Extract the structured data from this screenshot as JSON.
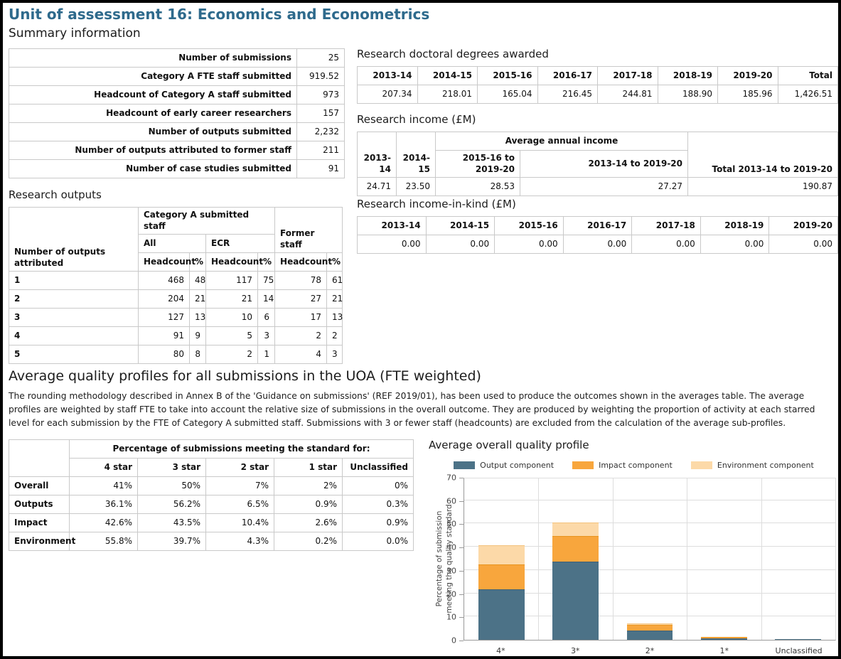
{
  "page": {
    "title": "Unit of assessment 16: Economics and Econometrics"
  },
  "colors": {
    "accent_heading": "#2e6a8c",
    "output_component": "#4c7287",
    "impact_component": "#f8a63d",
    "environment_component": "#fcd9a8"
  },
  "summary": {
    "heading": "Summary information",
    "rows": [
      {
        "label": "Number of submissions",
        "value": "25"
      },
      {
        "label": "Category A FTE staff submitted",
        "value": "919.52"
      },
      {
        "label": "Headcount of Category A staff submitted",
        "value": "973"
      },
      {
        "label": "Headcount of early career researchers",
        "value": "157"
      },
      {
        "label": "Number of outputs submitted",
        "value": "2,232"
      },
      {
        "label": "Number of outputs attributed to former staff",
        "value": "211"
      },
      {
        "label": "Number of case studies submitted",
        "value": "91"
      }
    ]
  },
  "doctoral_degrees": {
    "heading": "Research doctoral degrees awarded",
    "columns": [
      "2013-14",
      "2014-15",
      "2015-16",
      "2016-17",
      "2017-18",
      "2018-19",
      "2019-20",
      "Total"
    ],
    "values": [
      "207.34",
      "218.01",
      "165.04",
      "216.45",
      "244.81",
      "188.90",
      "185.96",
      "1,426.51"
    ]
  },
  "research_income": {
    "heading": "Research income (£M)",
    "group_header": "Average annual income",
    "columns": [
      "2013-14",
      "2014-15",
      "2015-16 to 2019-20",
      "2013-14 to 2019-20",
      "Total 2013-14 to 2019-20"
    ],
    "values": [
      "24.71",
      "23.50",
      "28.53",
      "27.27",
      "190.87"
    ]
  },
  "income_in_kind": {
    "heading": "Research income-in-kind (£M)",
    "columns": [
      "2013-14",
      "2014-15",
      "2015-16",
      "2016-17",
      "2017-18",
      "2018-19",
      "2019-20"
    ],
    "values": [
      "0.00",
      "0.00",
      "0.00",
      "0.00",
      "0.00",
      "0.00",
      "0.00"
    ]
  },
  "research_outputs": {
    "heading": "Research outputs",
    "row_header": "Number of outputs attributed",
    "group1": "Category A submitted staff",
    "subgroups": [
      "All",
      "ECR",
      "Former staff"
    ],
    "measure_headers": [
      "Headcount",
      "%"
    ],
    "rows": [
      {
        "label": "1",
        "values": [
          "468",
          "48",
          "117",
          "75",
          "78",
          "61"
        ]
      },
      {
        "label": "2",
        "values": [
          "204",
          "21",
          "21",
          "14",
          "27",
          "21"
        ]
      },
      {
        "label": "3",
        "values": [
          "127",
          "13",
          "10",
          "6",
          "17",
          "13"
        ]
      },
      {
        "label": "4",
        "values": [
          "91",
          "9",
          "5",
          "3",
          "2",
          "2"
        ]
      },
      {
        "label": "5",
        "values": [
          "80",
          "8",
          "2",
          "1",
          "4",
          "3"
        ]
      }
    ]
  },
  "quality_profiles": {
    "heading": "Average quality profiles for all submissions in the UOA (FTE weighted)",
    "description": "The rounding methodology described in Annex B of the 'Guidance on submissions' (REF 2019/01), has been used to produce the outcomes shown in the averages table. The average profiles are weighted by staff FTE to take into account the relative size of submissions in the overall outcome. They are produced by weighting the proportion of activity at each starred level for each submission by the FTE of Category A submitted staff. Submissions with 3 or fewer staff (headcounts) are excluded from the calculation of the average sub-profiles.",
    "table": {
      "group_header": "Percentage of submissions meeting the standard for:",
      "columns": [
        "4 star",
        "3 star",
        "2 star",
        "1 star",
        "Unclassified"
      ],
      "rows": [
        {
          "label": "Overall",
          "values": [
            "41%",
            "50%",
            "7%",
            "2%",
            "0%"
          ]
        },
        {
          "label": "Outputs",
          "values": [
            "36.1%",
            "56.2%",
            "6.5%",
            "0.9%",
            "0.3%"
          ]
        },
        {
          "label": "Impact",
          "values": [
            "42.6%",
            "43.5%",
            "10.4%",
            "2.6%",
            "0.9%"
          ]
        },
        {
          "label": "Environment",
          "values": [
            "55.8%",
            "39.7%",
            "4.3%",
            "0.2%",
            "0.0%"
          ]
        }
      ]
    }
  },
  "chart_data": {
    "type": "bar",
    "stacked": true,
    "title": "Average overall quality profile",
    "categories": [
      "4*",
      "3*",
      "2*",
      "1*",
      "Unclassified"
    ],
    "series": [
      {
        "name": "Output component",
        "color": "#4c7287",
        "edge": "#3d6076",
        "values": [
          21.66,
          33.72,
          3.9,
          0.54,
          0.18
        ]
      },
      {
        "name": "Impact component",
        "color": "#f8a63d",
        "edge": "#e8941f",
        "values": [
          10.65,
          10.88,
          2.6,
          0.65,
          0.23
        ]
      },
      {
        "name": "Environment component",
        "color": "#fcd9a8",
        "edge": "#f3c27d",
        "values": [
          8.37,
          5.96,
          0.65,
          0.03,
          0.0
        ]
      }
    ],
    "stack_totals": [
      40.68,
      50.55,
      7.15,
      1.22,
      0.41
    ],
    "ylabel_lines": [
      "Percentage of submission",
      "meeting the quality standard"
    ],
    "ylim": [
      0,
      70
    ],
    "yticks": [
      0,
      10,
      20,
      30,
      40,
      50,
      60,
      70
    ],
    "grid": true,
    "legend_position": "top"
  }
}
